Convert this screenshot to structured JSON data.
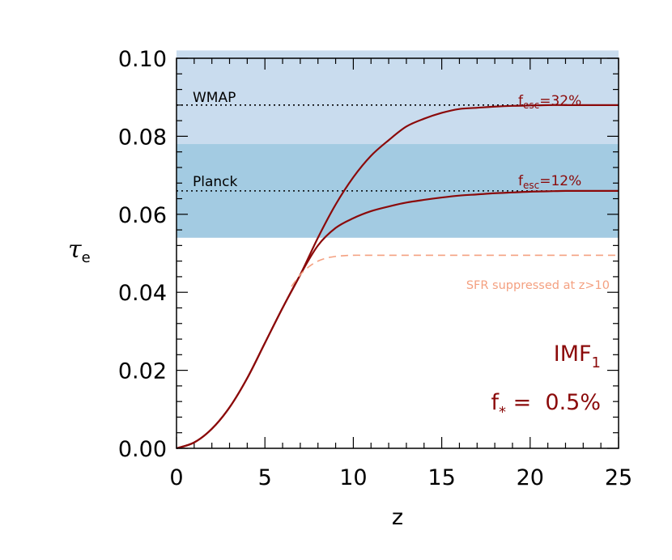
{
  "chart_data": {
    "type": "line",
    "xlabel": "z",
    "ylabel": "τ",
    "ylabel_sub": "e",
    "xlim": [
      0,
      25
    ],
    "ylim": [
      0,
      0.1
    ],
    "x_ticks": [
      "0",
      "5",
      "10",
      "15",
      "20",
      "25"
    ],
    "y_ticks": [
      "0.00",
      "0.02",
      "0.04",
      "0.06",
      "0.08",
      "0.10"
    ],
    "bands": [
      {
        "name": "WMAP",
        "range": [
          0.054,
          0.102
        ],
        "center": 0.088,
        "color": "#c9dcee"
      },
      {
        "name": "Planck",
        "range": [
          0.054,
          0.078
        ],
        "center": 0.066,
        "color": "#a3cbe2"
      }
    ],
    "series": [
      {
        "label_main": "f",
        "label_sub": "esc",
        "label_value": "=32%",
        "color": "#8b0a0a",
        "style": "solid",
        "x": [
          0,
          1,
          2,
          3,
          4,
          5,
          6,
          7,
          8,
          9,
          10,
          11,
          12,
          13,
          14,
          15,
          16,
          17,
          18,
          19,
          20,
          21,
          22,
          23,
          24,
          25
        ],
        "y": [
          0,
          0.0015,
          0.005,
          0.0105,
          0.018,
          0.027,
          0.036,
          0.0445,
          0.054,
          0.0625,
          0.0695,
          0.075,
          0.079,
          0.0825,
          0.0845,
          0.086,
          0.087,
          0.0873,
          0.0876,
          0.0878,
          0.0879,
          0.088,
          0.088,
          0.088,
          0.088,
          0.088
        ]
      },
      {
        "label_main": "f",
        "label_sub": "esc",
        "label_value": "=12%",
        "color": "#8b0a0a",
        "style": "solid",
        "x": [
          0,
          1,
          2,
          3,
          4,
          5,
          6,
          7,
          8,
          9,
          10,
          11,
          12,
          13,
          14,
          15,
          16,
          17,
          18,
          19,
          20,
          21,
          22,
          23,
          24,
          25
        ],
        "y": [
          0,
          0.0015,
          0.005,
          0.0105,
          0.018,
          0.027,
          0.036,
          0.0445,
          0.052,
          0.0565,
          0.059,
          0.0608,
          0.062,
          0.063,
          0.0637,
          0.0643,
          0.0648,
          0.0651,
          0.0654,
          0.0656,
          0.0658,
          0.0659,
          0.066,
          0.066,
          0.066,
          0.066
        ]
      },
      {
        "name": "SFR suppressed at z>10",
        "color": "#f4a080",
        "style": "dashed",
        "x": [
          6.5,
          7,
          7.5,
          8,
          8.5,
          9,
          9.5,
          10,
          11,
          15,
          20,
          25
        ],
        "y": [
          0.0415,
          0.0445,
          0.0466,
          0.048,
          0.0488,
          0.0492,
          0.0494,
          0.0495,
          0.0495,
          0.0495,
          0.0495,
          0.0495
        ]
      }
    ],
    "annotations": {
      "imf_main": "IMF",
      "imf_sub": "1",
      "fstar_main": "f",
      "fstar_sub": "*",
      "fstar_value": " =  0.5%"
    }
  }
}
